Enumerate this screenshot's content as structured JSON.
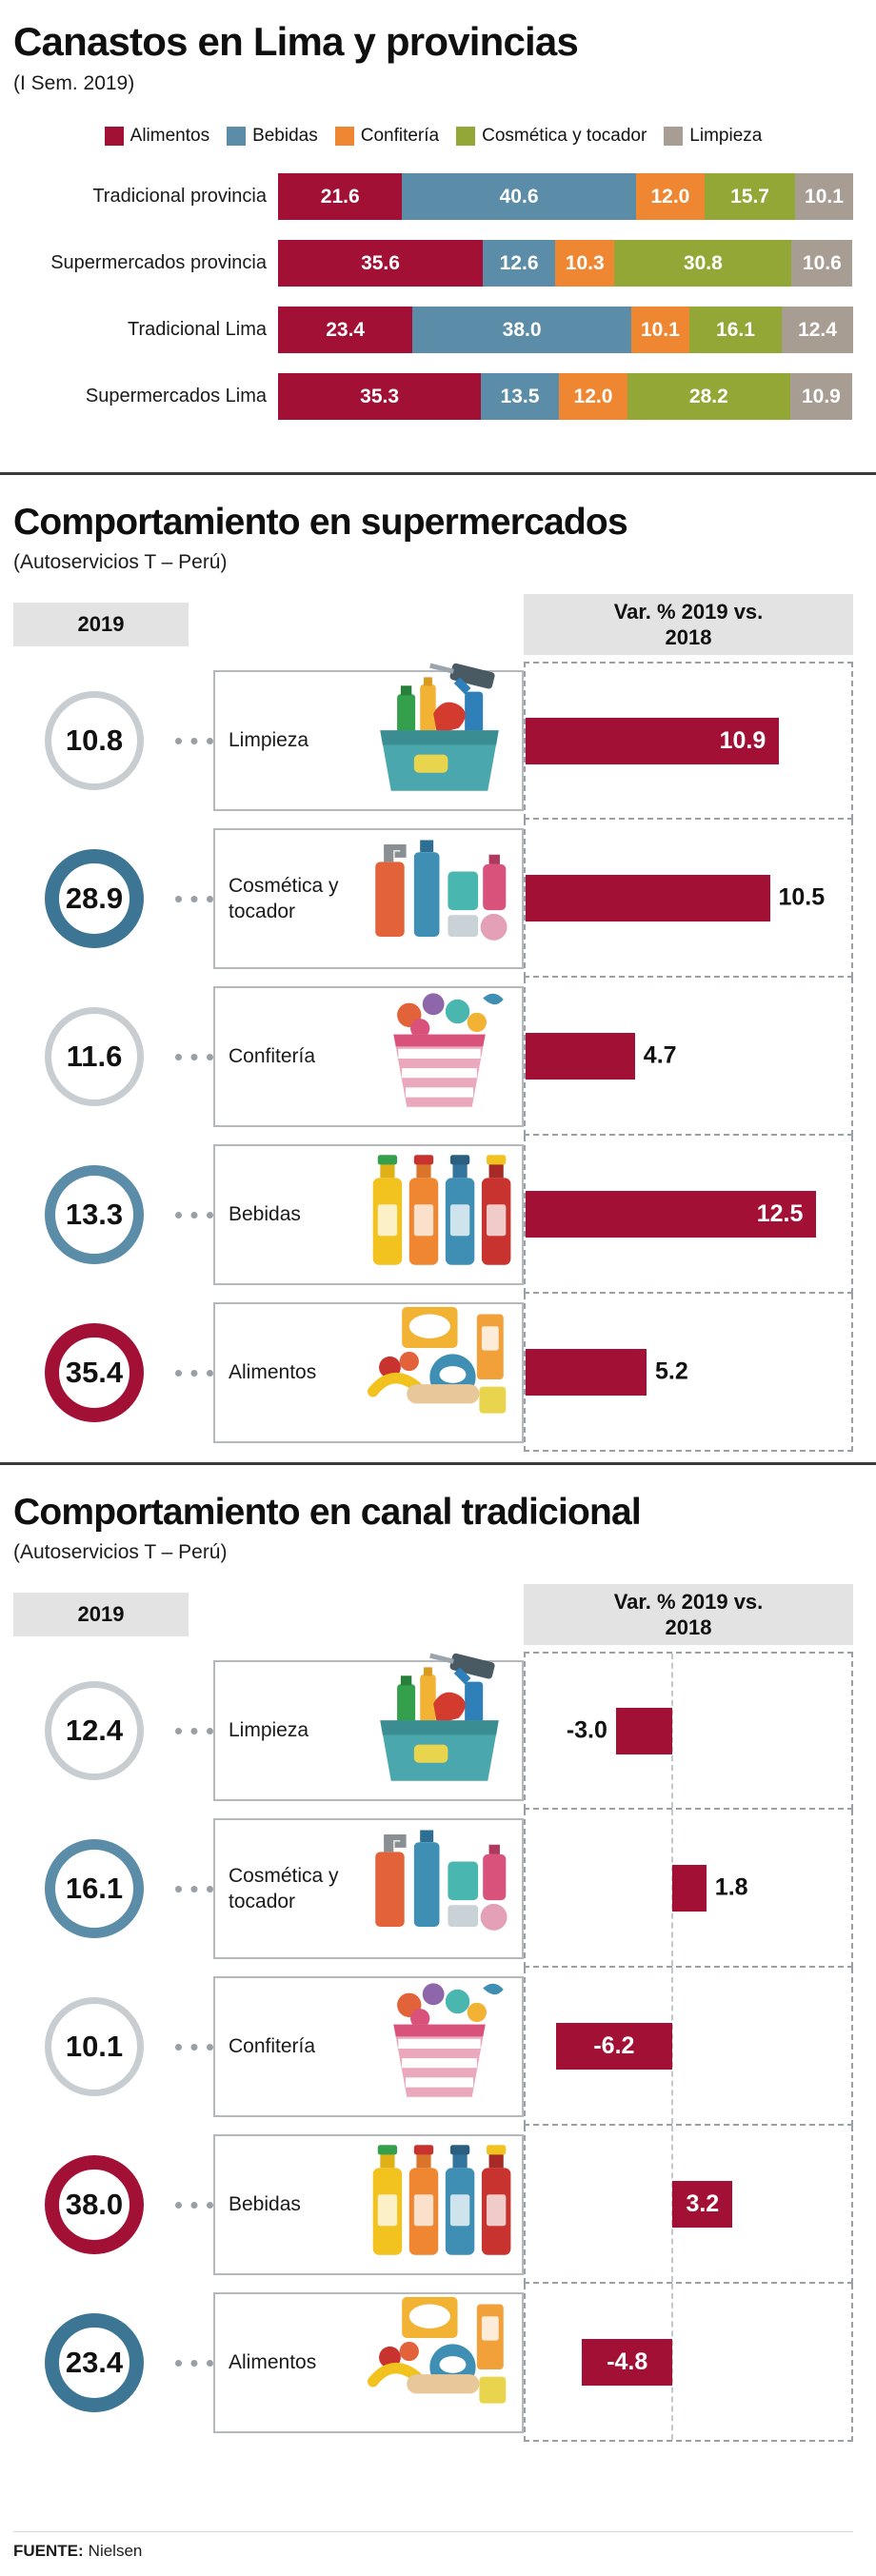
{
  "colors": {
    "alimentos": "#a31036",
    "bebidas": "#5b8ca8",
    "confiteria": "#ef8632",
    "cosmetica": "#93a737",
    "limpieza": "#a79d93",
    "bar": "#a31036",
    "ring_gray": "#c8cdd1",
    "ring_blue": "#5b8ca8",
    "ring_blue_dark": "#3d7694",
    "ring_red": "#a31036"
  },
  "section1": {
    "title": "Canastos en Lima y provincias",
    "subtitle": "(I Sem. 2019)",
    "legend": [
      {
        "label": "Alimentos",
        "color": "alimentos"
      },
      {
        "label": "Bebidas",
        "color": "bebidas"
      },
      {
        "label": "Confitería",
        "color": "confiteria"
      },
      {
        "label": "Cosmética y tocador",
        "color": "cosmetica"
      },
      {
        "label": "Limpieza",
        "color": "limpieza"
      }
    ]
  },
  "section2": {
    "title": "Comportamiento en supermercados",
    "subtitle": "(Autoservicios T – Perú)",
    "year_header": "2019",
    "var_header": "Var. % 2019 vs.\n2018"
  },
  "section3": {
    "title": "Comportamiento en canal tradicional",
    "subtitle": "(Autoservicios T – Perú)",
    "year_header": "2019",
    "var_header": "Var. % 2019 vs.\n2018"
  },
  "footer": {
    "source_label": "FUENTE:",
    "source_value": "Nielsen"
  },
  "chart_data": [
    {
      "id": "canastos-lima-provincias",
      "type": "bar",
      "stacked": true,
      "orientation": "horizontal",
      "title": "Canastos en Lima y provincias",
      "subtitle": "(I Sem. 2019)",
      "categories": [
        "Tradicional provincia",
        "Supermercados provincia",
        "Tradicional Lima",
        "Supermercados Lima"
      ],
      "series": [
        {
          "name": "Alimentos",
          "color": "alimentos",
          "values": [
            21.6,
            35.6,
            23.4,
            35.3
          ]
        },
        {
          "name": "Bebidas",
          "color": "bebidas",
          "values": [
            40.6,
            12.6,
            38.0,
            13.5
          ]
        },
        {
          "name": "Confitería",
          "color": "confiteria",
          "values": [
            12.0,
            10.3,
            10.1,
            12.0
          ]
        },
        {
          "name": "Cosmética y tocador",
          "color": "cosmetica",
          "values": [
            15.7,
            30.8,
            16.1,
            28.2
          ]
        },
        {
          "name": "Limpieza",
          "color": "limpieza",
          "values": [
            10.1,
            10.6,
            12.4,
            10.9
          ]
        }
      ],
      "xlim": [
        0,
        100
      ],
      "legend_position": "top",
      "grid": false
    },
    {
      "id": "comportamiento-supermercados",
      "type": "bar",
      "orientation": "horizontal",
      "title": "Comportamiento en supermercados",
      "subtitle": "(Autoservicios T – Perú)",
      "columns": [
        "2019",
        "Var. % 2019 vs. 2018"
      ],
      "xlim": [
        0,
        14
      ],
      "diverging": false,
      "grid": false,
      "rows": [
        {
          "category": "Limpieza",
          "share_2019": 10.8,
          "var_pct": 10.9,
          "ring": "gray-thin",
          "icon": "cleaning-products-icon",
          "label_inside": true
        },
        {
          "category": "Cosmética y tocador",
          "share_2019": 28.9,
          "var_pct": 10.5,
          "ring": "blue-thick",
          "icon": "cosmetics-icon",
          "label_inside": false
        },
        {
          "category": "Confitería",
          "share_2019": 11.6,
          "var_pct": 4.7,
          "ring": "gray-thin",
          "icon": "candies-icon",
          "label_inside": false
        },
        {
          "category": "Bebidas",
          "share_2019": 13.3,
          "var_pct": 12.5,
          "ring": "blue-medium",
          "icon": "drinks-icon",
          "label_inside": true
        },
        {
          "category": "Alimentos",
          "share_2019": 35.4,
          "var_pct": 5.2,
          "ring": "red-thick",
          "icon": "food-icon",
          "label_inside": false
        }
      ]
    },
    {
      "id": "comportamiento-canal-tradicional",
      "type": "bar",
      "orientation": "horizontal",
      "title": "Comportamiento en canal tradicional",
      "subtitle": "(Autoservicios T – Perú)",
      "columns": [
        "2019",
        "Var. % 2019 vs. 2018"
      ],
      "xlim": [
        -7.8,
        9.5
      ],
      "diverging": true,
      "grid": false,
      "rows": [
        {
          "category": "Limpieza",
          "share_2019": 12.4,
          "var_pct": -3.0,
          "ring": "gray-thin",
          "icon": "cleaning-products-icon",
          "label_inside": false
        },
        {
          "category": "Cosmética y tocador",
          "share_2019": 16.1,
          "var_pct": 1.8,
          "ring": "blue-medium",
          "icon": "cosmetics-icon",
          "label_inside": false
        },
        {
          "category": "Confitería",
          "share_2019": 10.1,
          "var_pct": -6.2,
          "ring": "gray-thin",
          "icon": "candies-icon",
          "label_inside": true
        },
        {
          "category": "Bebidas",
          "share_2019": 38.0,
          "var_pct": 3.2,
          "ring": "red-thick",
          "icon": "drinks-icon",
          "label_inside": true
        },
        {
          "category": "Alimentos",
          "share_2019": 23.4,
          "var_pct": -4.8,
          "ring": "blue-thick",
          "icon": "food-icon",
          "label_inside": true
        }
      ]
    }
  ]
}
